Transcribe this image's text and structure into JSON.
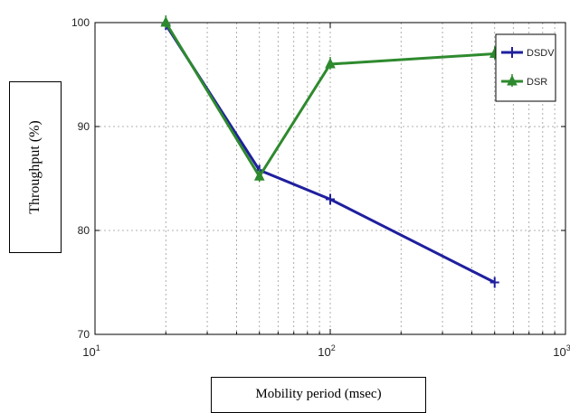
{
  "chart_data": {
    "type": "line",
    "title": "",
    "xlabel": "Mobility period (msec)",
    "ylabel": "Throughput (%)",
    "xscale": "log",
    "xlim": [
      10,
      1000
    ],
    "ylim": [
      70,
      100
    ],
    "xticks": [
      {
        "value": 10,
        "label": "10^1"
      },
      {
        "value": 100,
        "label": "10^2"
      },
      {
        "value": 1000,
        "label": "10^3"
      }
    ],
    "yticks": [
      70,
      80,
      90,
      100
    ],
    "grid": true,
    "legend_position": "top-right",
    "series": [
      {
        "name": "DSDV",
        "color": "#1f1f9e",
        "marker": "plus",
        "x": [
          20,
          50,
          100,
          500
        ],
        "y": [
          99.8,
          85.8,
          83,
          75
        ]
      },
      {
        "name": "DSR",
        "color": "#2e8a2e",
        "marker": "triangle",
        "x": [
          20,
          50,
          100,
          500
        ],
        "y": [
          100,
          85.2,
          96,
          97
        ]
      }
    ]
  }
}
